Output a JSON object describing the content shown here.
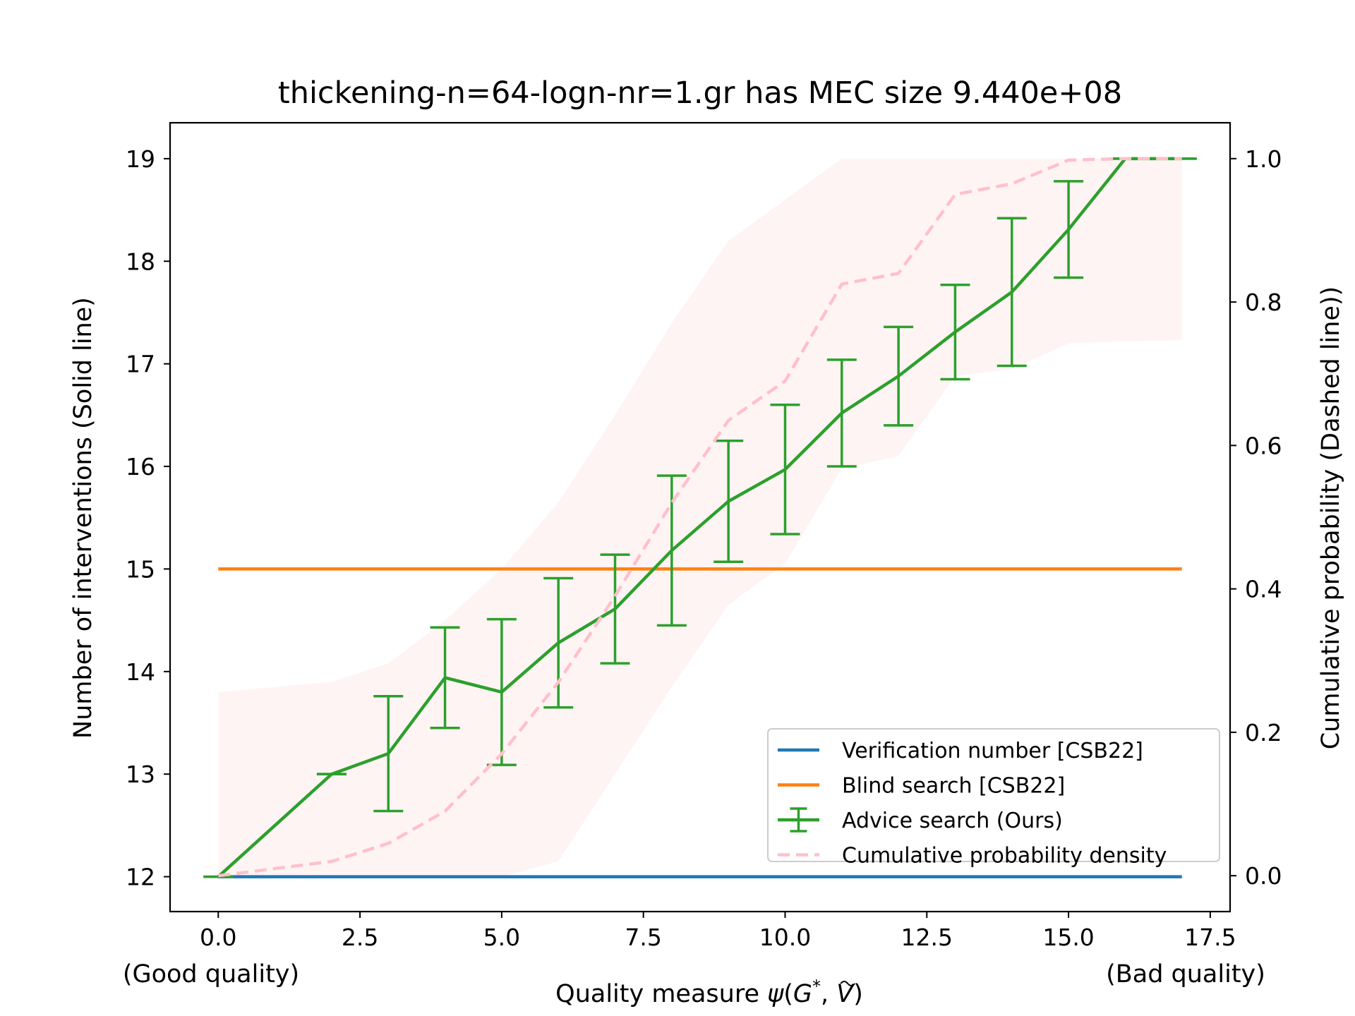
{
  "chart_data": {
    "type": "line",
    "title": "thickening-n=64-logn-nr=1.gr has MEC size 9.440e+08",
    "xlabel": "Quality measure ψ(G*, Ṽ)",
    "xlabel_parts": {
      "prefix": "Quality measure ",
      "psi": "ψ",
      "open": "(",
      "g": "G",
      "star": "*",
      "sep": ", ",
      "v": "V",
      "close": ")"
    },
    "xlabel_left_note": "(Good quality)",
    "xlabel_right_note": "(Bad quality)",
    "ylabel_left": "Number of interventions (Solid line)",
    "ylabel_right": "Cumulative probability (Dashed line))",
    "xlim": [
      -0.85,
      17.85
    ],
    "ylim_left": [
      11.66,
      19.35
    ],
    "ylim_right": [
      -0.05,
      1.05
    ],
    "x_ticks": [
      "0.0",
      "2.5",
      "5.0",
      "7.5",
      "10.0",
      "12.5",
      "15.0",
      "17.5"
    ],
    "y_ticks_left": [
      "12",
      "13",
      "14",
      "15",
      "16",
      "17",
      "18",
      "19"
    ],
    "y_ticks_right": [
      "0.0",
      "0.2",
      "0.4",
      "0.6",
      "0.8",
      "1.0"
    ],
    "grid": false,
    "legend_position": "lower right",
    "legend": [
      {
        "label": "Verification number [CSB22]",
        "color": "#1f77b4",
        "style": "solid"
      },
      {
        "label": "Blind search [CSB22]",
        "color": "#ff7f0e",
        "style": "solid"
      },
      {
        "label": "Advice search (Ours)",
        "color": "#2ca02c",
        "style": "errorbar"
      },
      {
        "label": "Cumulative probability density",
        "color": "#ffc0cb",
        "style": "dashed"
      }
    ],
    "series": [
      {
        "name": "Verification number [CSB22]",
        "axis": "left",
        "color": "#1f77b4",
        "x": [
          0,
          17
        ],
        "y": [
          12,
          12
        ]
      },
      {
        "name": "Blind search [CSB22]",
        "axis": "left",
        "color": "#ff7f0e",
        "x": [
          0,
          17
        ],
        "y": [
          15,
          15
        ]
      },
      {
        "name": "Advice search (Ours)",
        "axis": "left",
        "color": "#2ca02c",
        "x": [
          0,
          2,
          3,
          4,
          5,
          6,
          7,
          8,
          9,
          10,
          11,
          12,
          13,
          14,
          15,
          16,
          17
        ],
        "y": [
          12.0,
          13.0,
          13.2,
          13.94,
          13.8,
          14.28,
          14.61,
          15.18,
          15.66,
          15.97,
          16.52,
          16.88,
          17.31,
          17.7,
          18.31,
          19.0,
          19.0
        ],
        "err": [
          0.0,
          0.0,
          0.56,
          0.49,
          0.71,
          0.63,
          0.53,
          0.73,
          0.59,
          0.63,
          0.52,
          0.48,
          0.46,
          0.72,
          0.47,
          0.0,
          0.0
        ]
      },
      {
        "name": "Cumulative probability density",
        "axis": "right",
        "color": "#ffc0cb",
        "x": [
          0,
          2,
          3,
          4,
          5,
          6,
          7,
          8,
          9,
          10,
          11,
          12,
          13,
          14,
          15,
          16,
          17
        ],
        "y": [
          0.0,
          0.02,
          0.045,
          0.09,
          0.17,
          0.27,
          0.39,
          0.52,
          0.635,
          0.69,
          0.825,
          0.84,
          0.95,
          0.965,
          0.998,
          1.0,
          1.0
        ]
      }
    ],
    "shaded_band": {
      "axis": "left",
      "color": "#fff4f4",
      "x": [
        0,
        2,
        3,
        4,
        5,
        6,
        7,
        8,
        9,
        10,
        11,
        12,
        13,
        14,
        15,
        16,
        17
      ],
      "lower": [
        12.0,
        12.0,
        12.0,
        12.0,
        12.0,
        12.15,
        13.0,
        13.85,
        14.65,
        15.05,
        15.98,
        16.1,
        16.88,
        16.95,
        17.2,
        17.22,
        17.23
      ],
      "upper": [
        13.8,
        13.9,
        14.08,
        14.5,
        15.0,
        15.65,
        16.5,
        17.4,
        18.2,
        18.6,
        19.0,
        19.0,
        19.0,
        19.0,
        19.0,
        19.0,
        19.0
      ]
    }
  }
}
